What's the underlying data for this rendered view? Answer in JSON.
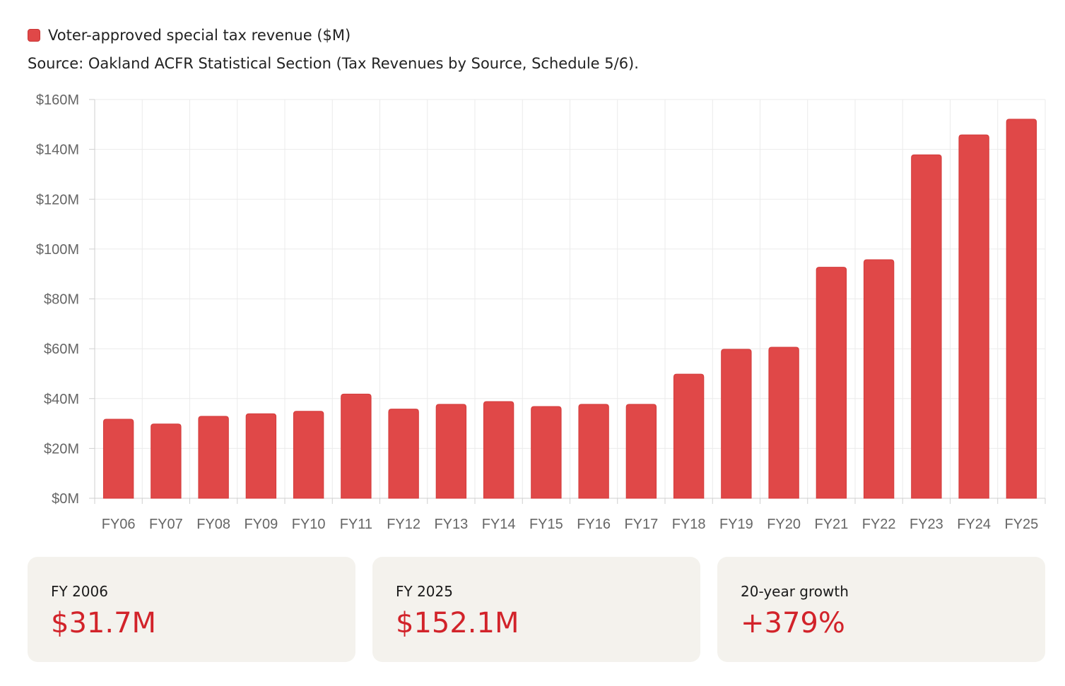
{
  "legend": {
    "label": "Voter-approved special tax revenue ($M)",
    "color": "#e04848"
  },
  "source": "Source: Oakland ACFR Statistical Section (Tax Revenues by Source, Schedule 5/6).",
  "chart_data": {
    "type": "bar",
    "categories": [
      "FY06",
      "FY07",
      "FY08",
      "FY09",
      "FY10",
      "FY11",
      "FY12",
      "FY13",
      "FY14",
      "FY15",
      "FY16",
      "FY17",
      "FY18",
      "FY19",
      "FY20",
      "FY21",
      "FY22",
      "FY23",
      "FY24",
      "FY25"
    ],
    "series": [
      {
        "name": "Voter-approved special tax revenue ($M)",
        "values": [
          31.7,
          29.8,
          32.9,
          33.9,
          34.9,
          41.8,
          35.8,
          37.7,
          38.8,
          36.8,
          37.7,
          37.7,
          49.8,
          59.8,
          60.6,
          92.7,
          95.7,
          137.8,
          145.8,
          152.1
        ],
        "color": "#e04848"
      }
    ],
    "y_ticks": [
      "$0M",
      "$20M",
      "$40M",
      "$60M",
      "$80M",
      "$100M",
      "$120M",
      "$140M",
      "$160M"
    ],
    "ylim": [
      0,
      160
    ],
    "grid": true,
    "legend_position": "top-left"
  },
  "cards": [
    {
      "label": "FY 2006",
      "value": "$31.7M"
    },
    {
      "label": "FY 2025",
      "value": "$152.1M"
    },
    {
      "label": "20-year growth",
      "value": "+379%"
    }
  ],
  "colors": {
    "bar": "#e04848",
    "bar_edge": "#d33a3a",
    "accent_text": "#d2232a",
    "card_bg": "#f4f2ed",
    "grid": "#ebebeb",
    "axis": "#cfcfcf"
  }
}
